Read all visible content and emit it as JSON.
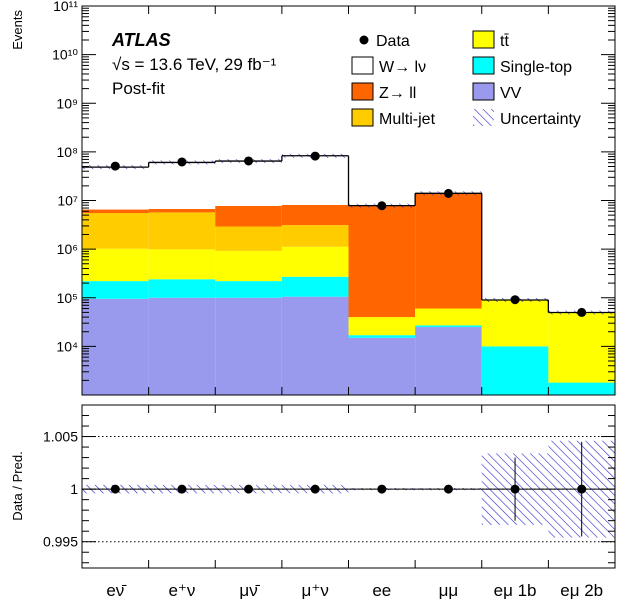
{
  "chart_data": [
    {
      "type": "bar",
      "stacked": true,
      "yscale": "log",
      "ylabel": "Events",
      "ylim": [
        1000,
        100000000000
      ],
      "ytick_labels": [
        "10⁴",
        "10⁵",
        "10⁶",
        "10⁷",
        "10⁸",
        "10⁹",
        "10¹⁰",
        "10¹¹"
      ],
      "categories": [
        "eν̄",
        "e⁺ν",
        "μν̄",
        "μ⁺ν",
        "ee",
        "μμ",
        "eμ 1b",
        "eμ 2b"
      ],
      "annotations": {
        "experiment": "ATLAS",
        "energy": "√s = 13.6 TeV, 29 fb⁻¹",
        "fit_state": "Post-fit"
      },
      "legend_position": "top",
      "series": [
        {
          "name": "VV",
          "color": "#9999ee",
          "values": [
            95000,
            100000,
            100000,
            105000,
            15000,
            25000,
            0,
            0
          ]
        },
        {
          "name": "Single-top",
          "color": "#00ffff",
          "values": [
            125000,
            140000,
            120000,
            165000,
            2000,
            2000,
            10000,
            1800
          ]
        },
        {
          "name": "tt̄",
          "color": "#ffff00",
          "values": [
            800000,
            750000,
            700000,
            850000,
            23000,
            33000,
            80000,
            48000
          ]
        },
        {
          "name": "Multi-jet",
          "color": "#ffcc00",
          "values": [
            4500000,
            4700000,
            2000000,
            2000000,
            0,
            0,
            0,
            0
          ]
        },
        {
          "name": "Z→ ll",
          "color": "#ff6600",
          "values": [
            1000000,
            1000000,
            4800000,
            5000000,
            7800000,
            14000000,
            0,
            0
          ]
        },
        {
          "name": "W→ lν",
          "color": "#ffffff",
          "values": [
            42000000,
            54000000,
            57000000,
            75000000,
            0,
            0,
            0,
            0
          ]
        }
      ],
      "data": {
        "name": "Data",
        "values": [
          51000000,
          62000000,
          65000000,
          82000000,
          7800000,
          14000000,
          91000,
          50000
        ]
      },
      "uncertainty_label": "Uncertainty"
    },
    {
      "type": "scatter",
      "ylabel": "Data / Pred.",
      "ylim": [
        0.9925,
        1.008
      ],
      "ytick_labels": [
        "0.995",
        "1",
        "1.005"
      ],
      "reference_lines": [
        0.995,
        1.0,
        1.005
      ],
      "categories": [
        "eν̄",
        "e⁺ν",
        "μν̄",
        "μ⁺ν",
        "ee",
        "μμ",
        "eμ 1b",
        "eμ 2b"
      ],
      "ratio": [
        1.0,
        1.0,
        1.0,
        1.0,
        1.0,
        1.0,
        1.0,
        1.0
      ],
      "ratio_error": [
        0.0003,
        0.0003,
        0.0003,
        0.0003,
        0.0002,
        0.0002,
        0.003,
        0.0045
      ],
      "uncertainty_band": [
        0.0004,
        0.0004,
        0.0004,
        0.0004,
        0.0001,
        0.0001,
        0.0034,
        0.0046
      ]
    }
  ]
}
